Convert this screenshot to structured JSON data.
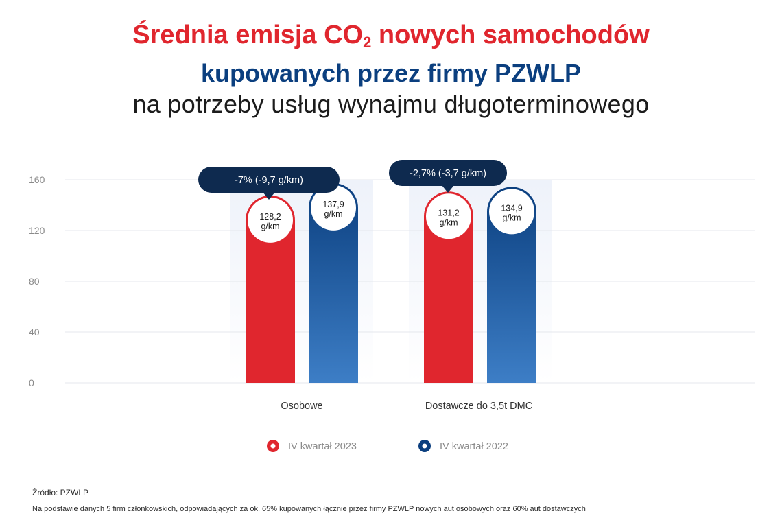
{
  "title": {
    "line1_prefix": "Średnia emisja CO",
    "line1_sub": "2",
    "line1_suffix": " nowych samochodów",
    "line2": "kupowanych przez firmy PZWLP",
    "line3": "na potrzeby usług wynajmu długoterminowego"
  },
  "chart_data": {
    "type": "bar",
    "categories": [
      "Osobowe",
      "Dostawcze do 3,5t DMC"
    ],
    "series": [
      {
        "name": "IV kwartał 2023",
        "values": [
          128.2,
          131.2
        ],
        "value_labels": [
          "128,2",
          "131,2"
        ],
        "color": "#e0262e"
      },
      {
        "name": "IV kwartał 2022",
        "values": [
          137.9,
          134.9
        ],
        "value_labels": [
          "137,9",
          "134,9"
        ],
        "color": "#0b3f7f"
      }
    ],
    "unit_label": "g/km",
    "yticks": [
      "0",
      "40",
      "80",
      "120",
      "160"
    ],
    "ylim": [
      0,
      160
    ],
    "grid": true,
    "legend": "bottom-center",
    "callouts": [
      "-7% (-9,7 g/km)",
      "-2,7% (-3,7 g/km)"
    ]
  },
  "footer": {
    "source": "Źródło: PZWLP",
    "note": "Na podstawie danych 5 firm członkowskich, odpowiadających za ok. 65% kupowanych łącznie przez firmy PZWLP nowych aut osobowych oraz 60% aut dostawczych"
  }
}
